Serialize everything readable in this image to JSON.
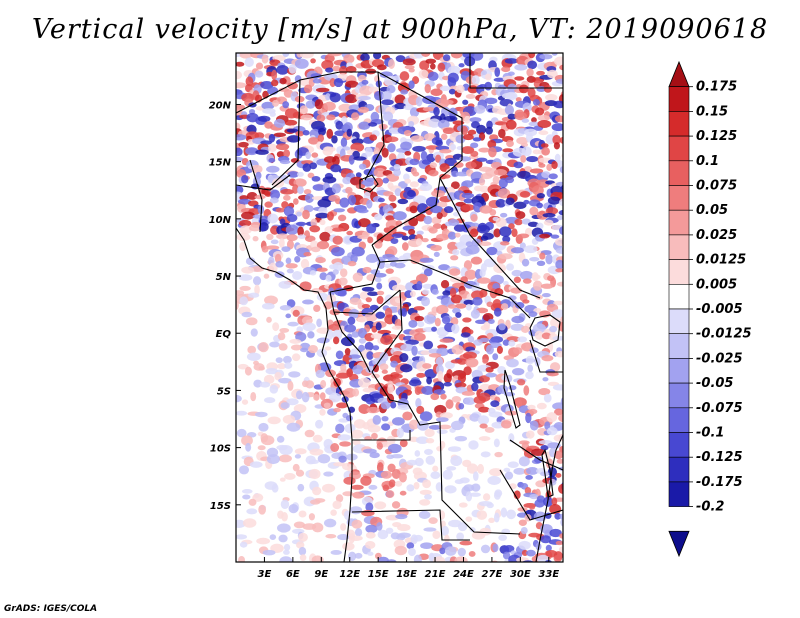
{
  "title": "Vertical velocity [m/s] at 900hPa, VT: 2019090618",
  "credit": "GrADS: IGES/COLA",
  "map": {
    "region": "Central Africa",
    "lon_range": [
      0,
      34.5
    ],
    "lat_range": [
      -20,
      24.5
    ],
    "x_ticks": [
      {
        "lon": 3,
        "label": "3E"
      },
      {
        "lon": 6,
        "label": "6E"
      },
      {
        "lon": 9,
        "label": "9E"
      },
      {
        "lon": 12,
        "label": "12E"
      },
      {
        "lon": 15,
        "label": "15E"
      },
      {
        "lon": 18,
        "label": "18E"
      },
      {
        "lon": 21,
        "label": "21E"
      },
      {
        "lon": 24,
        "label": "24E"
      },
      {
        "lon": 27,
        "label": "27E"
      },
      {
        "lon": 30,
        "label": "30E"
      },
      {
        "lon": 33,
        "label": "33E"
      }
    ],
    "y_ticks": [
      {
        "lat": 20,
        "label": "20N"
      },
      {
        "lat": 15,
        "label": "15N"
      },
      {
        "lat": 10,
        "label": "10N"
      },
      {
        "lat": 5,
        "label": "5N"
      },
      {
        "lat": 0,
        "label": "EQ"
      },
      {
        "lat": -5,
        "label": "5S"
      },
      {
        "lat": -10,
        "label": "10S"
      },
      {
        "lat": -15,
        "label": "15S"
      }
    ]
  },
  "colorbar": {
    "labels": [
      "0.175",
      "0.15",
      "0.125",
      "0.1",
      "0.075",
      "0.05",
      "0.025",
      "0.0125",
      "0.005",
      "-0.005",
      "-0.0125",
      "-0.025",
      "-0.05",
      "-0.075",
      "-0.1",
      "-0.125",
      "-0.175",
      "-0.2"
    ],
    "colors": [
      "#a50f15",
      "#c0161b",
      "#d52b2b",
      "#e04545",
      "#e86060",
      "#ef7d7d",
      "#f49a9a",
      "#f8bcbc",
      "#fcdcdc",
      "#ffffff",
      "#dcdcfa",
      "#c2c2f6",
      "#a2a2f0",
      "#8585e8",
      "#6666df",
      "#4848d2",
      "#2e2ebe",
      "#1a1aa8",
      "#0d0d8c"
    ]
  }
}
